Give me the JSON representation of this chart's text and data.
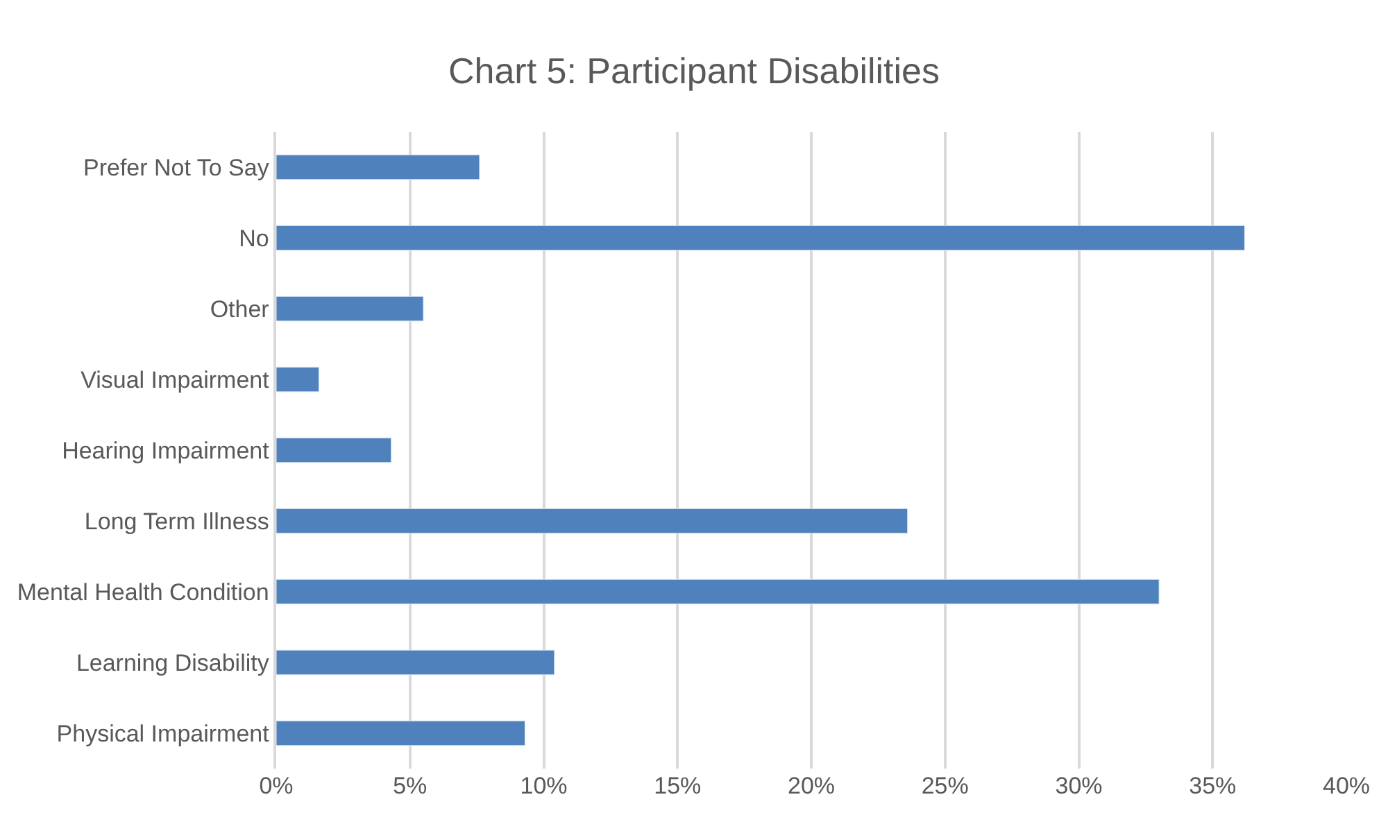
{
  "chart_data": {
    "type": "bar",
    "orientation": "horizontal",
    "title": "Chart 5: Participant Disabilities",
    "categories": [
      "Prefer Not To Say",
      "No",
      "Other",
      "Visual Impairment",
      "Hearing Impairment",
      "Long Term Illness",
      "Mental Health Condition",
      "Learning Disability",
      "Physical Impairment"
    ],
    "values": [
      7.6,
      36.2,
      5.5,
      1.6,
      4.3,
      23.6,
      33.0,
      10.4,
      9.3
    ],
    "color": "#4f81bd",
    "xlim": [
      0,
      40
    ],
    "xticks": [
      {
        "value": 0,
        "label": "0%"
      },
      {
        "value": 5,
        "label": "5%"
      },
      {
        "value": 10,
        "label": "10%"
      },
      {
        "value": 15,
        "label": "15%"
      },
      {
        "value": 20,
        "label": "20%"
      },
      {
        "value": 25,
        "label": "25%"
      },
      {
        "value": 30,
        "label": "30%"
      },
      {
        "value": 35,
        "label": "35%"
      },
      {
        "value": 40,
        "label": "40%"
      }
    ],
    "grid": "x",
    "legend": false
  }
}
